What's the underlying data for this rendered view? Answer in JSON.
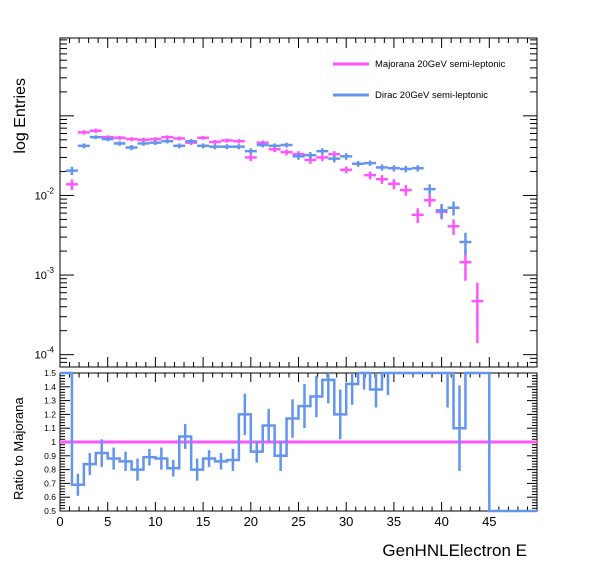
{
  "chart_data": [
    {
      "type": "scatter",
      "ylabel": "log Entries",
      "yscale": "log",
      "xlim": [
        0,
        50
      ],
      "ylim": [
        7e-05,
        0.95
      ],
      "y_tick_labels": [
        "10",
        "10",
        "10"
      ],
      "y_tick_exponents": [
        "-4",
        "-3",
        "-2"
      ],
      "y_tick_values": [
        0.0001,
        0.001,
        0.01
      ],
      "bin_width": 1.25,
      "legend_position": "top-right",
      "series": [
        {
          "name": "Majorana 20GeV semi-leptonic",
          "color": "#ff55ff",
          "points": [
            [
              1.25,
              0.0138,
              0.0021
            ],
            [
              2.5,
              0.062,
              0.004
            ],
            [
              3.75,
              0.065,
              0.004
            ],
            [
              5.0,
              0.054,
              0.003
            ],
            [
              6.25,
              0.053,
              0.003
            ],
            [
              7.5,
              0.051,
              0.003
            ],
            [
              8.75,
              0.05,
              0.003
            ],
            [
              10.0,
              0.051,
              0.003
            ],
            [
              11.25,
              0.054,
              0.003
            ],
            [
              12.5,
              0.052,
              0.003
            ],
            [
              13.75,
              0.046,
              0.003
            ],
            [
              15.0,
              0.053,
              0.003
            ],
            [
              16.25,
              0.047,
              0.003
            ],
            [
              17.5,
              0.049,
              0.003
            ],
            [
              18.75,
              0.048,
              0.003
            ],
            [
              20.0,
              0.03,
              0.003
            ],
            [
              21.25,
              0.046,
              0.003
            ],
            [
              22.5,
              0.038,
              0.003
            ],
            [
              23.75,
              0.035,
              0.003
            ],
            [
              25.0,
              0.033,
              0.003
            ],
            [
              26.25,
              0.028,
              0.003
            ],
            [
              27.5,
              0.03,
              0.003
            ],
            [
              28.75,
              0.033,
              0.003
            ],
            [
              30.0,
              0.021,
              0.002
            ],
            [
              31.25,
              0.025,
              0.002
            ],
            [
              32.5,
              0.018,
              0.002
            ],
            [
              33.75,
              0.016,
              0.002
            ],
            [
              35.0,
              0.014,
              0.002
            ],
            [
              36.25,
              0.0117,
              0.0018
            ],
            [
              37.5,
              0.0057,
              0.0012
            ],
            [
              38.75,
              0.0087,
              0.0015
            ],
            [
              40.0,
              0.0062,
              0.0012
            ],
            [
              41.25,
              0.0041,
              0.0009
            ],
            [
              42.5,
              0.00145,
              0.0006
            ],
            [
              43.75,
              0.00047,
              0.00033
            ]
          ]
        },
        {
          "name": "Dirac 20GeV semi-leptonic",
          "color": "#6495ed",
          "points": [
            [
              1.25,
              0.0205,
              0.0025
            ],
            [
              2.5,
              0.042,
              0.003
            ],
            [
              3.75,
              0.054,
              0.003
            ],
            [
              5.0,
              0.051,
              0.003
            ],
            [
              6.25,
              0.045,
              0.003
            ],
            [
              7.5,
              0.04,
              0.003
            ],
            [
              8.75,
              0.045,
              0.003
            ],
            [
              10.0,
              0.046,
              0.003
            ],
            [
              11.25,
              0.048,
              0.003
            ],
            [
              12.5,
              0.042,
              0.003
            ],
            [
              13.75,
              0.048,
              0.003
            ],
            [
              15.0,
              0.042,
              0.003
            ],
            [
              16.25,
              0.041,
              0.003
            ],
            [
              17.5,
              0.041,
              0.003
            ],
            [
              18.75,
              0.041,
              0.003
            ],
            [
              20.0,
              0.036,
              0.003
            ],
            [
              21.25,
              0.043,
              0.003
            ],
            [
              22.5,
              0.042,
              0.003
            ],
            [
              23.75,
              0.043,
              0.003
            ],
            [
              25.0,
              0.031,
              0.003
            ],
            [
              26.25,
              0.032,
              0.003
            ],
            [
              27.5,
              0.036,
              0.003
            ],
            [
              28.75,
              0.029,
              0.003
            ],
            [
              30.0,
              0.031,
              0.003
            ],
            [
              31.25,
              0.025,
              0.002
            ],
            [
              32.5,
              0.0255,
              0.002
            ],
            [
              33.75,
              0.0225,
              0.002
            ],
            [
              35.0,
              0.022,
              0.002
            ],
            [
              36.25,
              0.0215,
              0.002
            ],
            [
              37.5,
              0.022,
              0.002
            ],
            [
              38.75,
              0.012,
              0.0018
            ],
            [
              40.0,
              0.0065,
              0.0013
            ],
            [
              41.25,
              0.007,
              0.0014
            ],
            [
              42.5,
              0.0026,
              0.0008
            ]
          ]
        }
      ]
    },
    {
      "type": "line",
      "ylabel": "Ratio to Majorana",
      "xlabel": "GenHNLElectron E",
      "xlim": [
        0,
        50
      ],
      "ylim": [
        0.5,
        1.5
      ],
      "x_ticks": [
        0,
        5,
        10,
        15,
        20,
        25,
        30,
        35,
        40,
        45
      ],
      "x_tick_labels": [
        "0",
        "5",
        "10",
        "15",
        "20",
        "25",
        "30",
        "35",
        "40",
        "45"
      ],
      "y_ticks": [
        0.5,
        0.6,
        0.7,
        0.8,
        0.9,
        1.0,
        1.1,
        1.2,
        1.3,
        1.4,
        1.5
      ],
      "y_tick_labels": [
        "0.5",
        "0.6",
        "0.7",
        "0.8",
        "0.9",
        "1",
        "1.1",
        "1.2",
        "1.3",
        "1.4",
        "1.5"
      ],
      "reference_value": 1,
      "reference_color": "#ff55ff",
      "ratio_color": "#6495ed",
      "bin_edges": [
        0,
        1.25,
        2.5,
        3.75,
        5,
        6.25,
        7.5,
        8.75,
        10,
        11.25,
        12.5,
        13.75,
        15,
        16.25,
        17.5,
        18.75,
        20,
        21.25,
        22.5,
        23.75,
        25,
        26.25,
        27.5,
        28.75,
        30,
        31.25,
        32.5,
        33.75,
        35,
        36.25,
        37.5,
        38.75,
        40,
        41.25,
        42.5,
        43.75,
        45,
        50
      ],
      "ratio_values": [
        1.5,
        0.69,
        0.84,
        0.92,
        0.88,
        0.86,
        0.8,
        0.89,
        0.88,
        0.81,
        1.04,
        0.8,
        0.88,
        0.86,
        0.87,
        1.2,
        0.93,
        1.12,
        0.9,
        1.17,
        1.26,
        1.33,
        1.45,
        1.2,
        1.42,
        1.5,
        1.38,
        1.5,
        1.5,
        1.5,
        1.5,
        1.5,
        1.5,
        1.1,
        1.5,
        1.5,
        0.5
      ],
      "ratio_errors": [
        0,
        0.08,
        0.08,
        0.1,
        0.08,
        0.07,
        0.08,
        0.06,
        0.08,
        0.06,
        0.09,
        0.08,
        0.06,
        0.06,
        0.08,
        0.15,
        0.08,
        0.12,
        0.11,
        0.14,
        0.16,
        0.15,
        0.17,
        0.18,
        0.15,
        0.12,
        0.13,
        0.16,
        0,
        0,
        0,
        0,
        0.25,
        0.31,
        0,
        0,
        0
      ]
    }
  ]
}
